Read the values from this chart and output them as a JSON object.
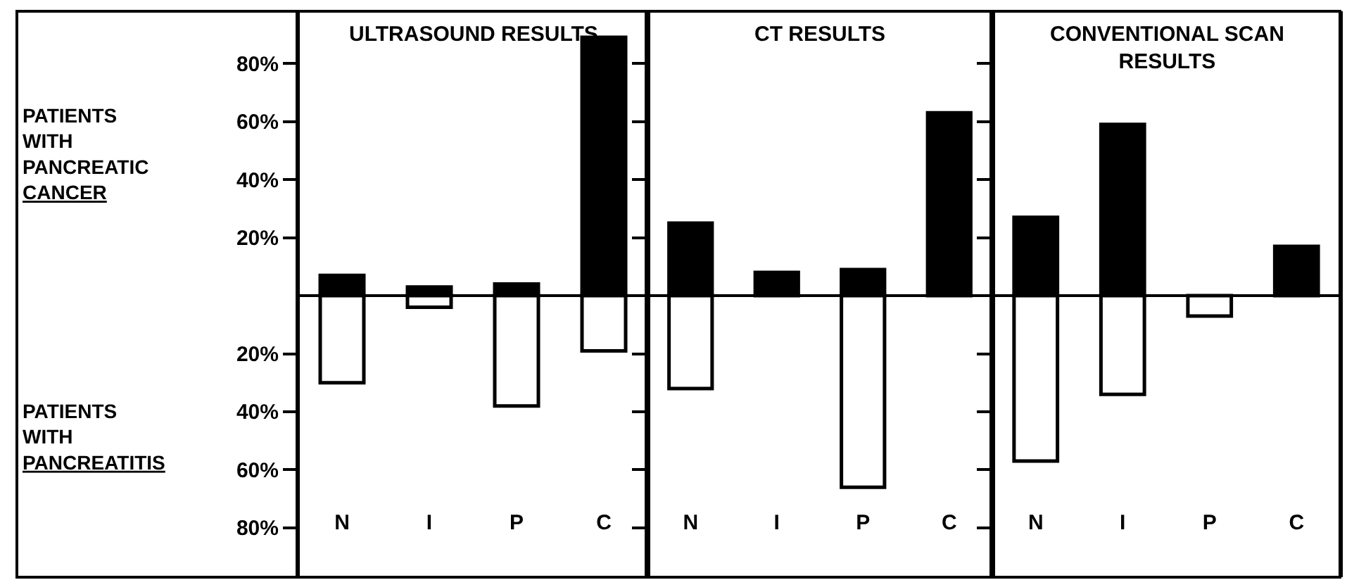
{
  "chart_data": [
    {
      "type": "bar",
      "title": "ULTRASOUND RESULTS",
      "categories": [
        "N",
        "I",
        "P",
        "C"
      ],
      "stacked": true,
      "series": [
        {
          "color": "#000000",
          "values": [
            7,
            3,
            4,
            89
          ]
        },
        {
          "color": "#ffffff",
          "values": [
            -30,
            -4,
            -38,
            -19
          ]
        }
      ],
      "ylim": [
        -97,
        98
      ],
      "yticks": [
        {
          "value": 80,
          "label": "80%"
        },
        {
          "value": 60,
          "label": "60%"
        },
        {
          "value": 40,
          "label": "40%"
        },
        {
          "value": 20,
          "label": "20%"
        },
        {
          "value": -20,
          "label": "20%"
        },
        {
          "value": -40,
          "label": "40%"
        },
        {
          "value": -60,
          "label": "60%"
        },
        {
          "value": -80,
          "label": "80%"
        }
      ],
      "annotations": [
        "PATIENTS\nWITH\nPANCREATIC\nCANCER",
        "PATIENTS\nWITH\nPANCREATITIS"
      ],
      "grid": false
    },
    {
      "type": "bar",
      "title": "CT RESULTS",
      "categories": [
        "N",
        "I",
        "P",
        "C"
      ],
      "stacked": true,
      "series": [
        {
          "color": "#000000",
          "values": [
            25,
            8,
            9,
            63
          ]
        },
        {
          "color": "#ffffff",
          "values": [
            -32,
            null,
            -66,
            null
          ]
        }
      ],
      "ylim": [
        -97,
        98
      ],
      "yticks": [
        {
          "value": 80,
          "label": null
        },
        {
          "value": 60,
          "label": null
        },
        {
          "value": 40,
          "label": null
        },
        {
          "value": 20,
          "label": null
        },
        {
          "value": -20,
          "label": null
        },
        {
          "value": -40,
          "label": null
        },
        {
          "value": -60,
          "label": null
        },
        {
          "value": -80,
          "label": null
        }
      ],
      "tick_labels": "x",
      "grid": false
    },
    {
      "type": "bar",
      "title": "CONVENTIONAL SCAN\nRESULTS",
      "categories": [
        "N",
        "I",
        "P",
        "C"
      ],
      "stacked": true,
      "series": [
        {
          "color": "#000000",
          "values": [
            27,
            59,
            null,
            17
          ]
        },
        {
          "color": "#ffffff",
          "values": [
            -57,
            -34,
            -7,
            null
          ]
        }
      ],
      "ylim": [
        -97,
        98
      ],
      "yticks": [
        {
          "value": 80,
          "label": null
        },
        {
          "value": 60,
          "label": null
        },
        {
          "value": 40,
          "label": null
        },
        {
          "value": 20,
          "label": null
        },
        {
          "value": -20,
          "label": null
        },
        {
          "value": -40,
          "label": null
        },
        {
          "value": -60,
          "label": null
        },
        {
          "value": -80,
          "label": null
        }
      ],
      "tick_labels": "x",
      "grid": false
    }
  ]
}
